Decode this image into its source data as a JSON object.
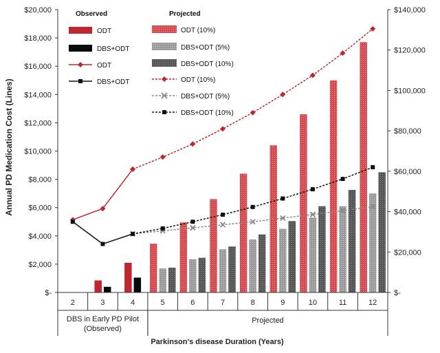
{
  "chart_data": {
    "type": "bar",
    "xlabel": "Parkinson's disease Duration (Years)",
    "ylabel": "Annual PD Medication Cost (Lines)",
    "y2label": "",
    "ylim": [
      0,
      20000
    ],
    "y2lim": [
      0,
      140000
    ],
    "yticks": [
      "$-",
      "$2,000",
      "$4,000",
      "$6,000",
      "$8,000",
      "$10,000",
      "$12,000",
      "$14,000",
      "$16,000",
      "$18,000",
      "$20,000"
    ],
    "y2ticks": [
      "$-",
      "$20,000",
      "$40,000",
      "$60,000",
      "$80,000",
      "$100,000",
      "$120,000",
      "$140,000"
    ],
    "categories": [
      "2",
      "3",
      "4",
      "5",
      "6",
      "7",
      "8",
      "9",
      "10",
      "11",
      "12"
    ],
    "groups": [
      {
        "label_lines": [
          "DBS in Early PD Pilot",
          "(Observed)"
        ],
        "from": 0,
        "to": 2
      },
      {
        "label_lines": [
          "Projected"
        ],
        "from": 3,
        "to": 10
      }
    ],
    "legend": {
      "observed_header": "Observed",
      "projected_header": "Projected",
      "observed": [
        "ODT",
        "DBS+ODT",
        "ODT",
        "DBS+ODT"
      ],
      "projected": [
        "ODT (10%)",
        "DBS+ODT (5%)",
        "DBS+ODT (10%)",
        "ODT (10%)",
        "DBS+ODT (5%)",
        "DBS+ODT (10%)"
      ]
    },
    "bar_series": [
      {
        "name": "ODT",
        "legend_group": "Observed",
        "color": "#c0262d",
        "values": [
          null,
          850,
          2100,
          null,
          null,
          null,
          null,
          null,
          null,
          null,
          null
        ]
      },
      {
        "name": "DBS+ODT",
        "legend_group": "Observed",
        "color": "#0a0a0a",
        "values": [
          null,
          400,
          1050,
          null,
          null,
          null,
          null,
          null,
          null,
          null,
          null
        ]
      },
      {
        "name": "ODT (10%)",
        "legend_group": "Projected",
        "color": "#d44a4f",
        "values": [
          null,
          null,
          null,
          3450,
          4950,
          6600,
          8400,
          10400,
          12600,
          15000,
          17700
        ]
      },
      {
        "name": "DBS+ODT (5%)",
        "legend_group": "Projected",
        "color": "#9a9a9a",
        "values": [
          null,
          null,
          null,
          1700,
          2350,
          3050,
          3750,
          4500,
          5300,
          6100,
          7000
        ]
      },
      {
        "name": "DBS+ODT (10%)",
        "legend_group": "Projected",
        "color": "#555555",
        "values": [
          null,
          null,
          null,
          1750,
          2450,
          3250,
          4100,
          5050,
          6100,
          7250,
          8500
        ]
      }
    ],
    "line_series": [
      {
        "name": "ODT",
        "legend_group": "Observed",
        "axis": "y2",
        "color": "#c0262d",
        "dash": "solid",
        "marker": "diamond",
        "values": [
          36000,
          41500,
          61000,
          null,
          null,
          null,
          null,
          null,
          null,
          null,
          null
        ]
      },
      {
        "name": "DBS+ODT",
        "legend_group": "Observed",
        "axis": "y2",
        "color": "#111111",
        "dash": "solid",
        "marker": "square",
        "values": [
          35000,
          24000,
          29000,
          null,
          null,
          null,
          null,
          null,
          null,
          null,
          null
        ]
      },
      {
        "name": "ODT (10%)",
        "legend_group": "Projected",
        "axis": "y2",
        "color": "#c0262d",
        "dash": "dashed",
        "marker": "diamond",
        "values": [
          null,
          null,
          61000,
          67000,
          73500,
          81000,
          89000,
          98000,
          107500,
          118500,
          130500
        ]
      },
      {
        "name": "DBS+ODT (5%)",
        "legend_group": "Projected",
        "axis": "y2",
        "color": "#888888",
        "dash": "dashed",
        "marker": "x",
        "values": [
          null,
          null,
          29000,
          30500,
          32000,
          33500,
          35000,
          36800,
          38600,
          40500,
          42500
        ]
      },
      {
        "name": "DBS+ODT (10%)",
        "legend_group": "Projected",
        "axis": "y2",
        "color": "#111111",
        "dash": "dashed",
        "marker": "square",
        "values": [
          null,
          null,
          29000,
          31700,
          35000,
          38500,
          42300,
          46500,
          51100,
          56200,
          62000
        ]
      }
    ]
  }
}
